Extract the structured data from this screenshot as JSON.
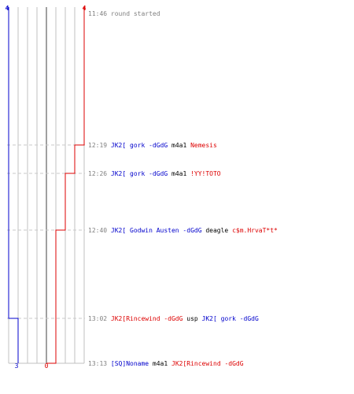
{
  "scores": {
    "blue_start": "4",
    "red_start": "4",
    "blue_end": "3",
    "red_end": "0"
  },
  "colors": {
    "blue": "#0000cc",
    "red": "#dd0000",
    "grid": "#c0c0c0",
    "center": "#808080",
    "time": "#808080",
    "weapon": "#000000",
    "dash": "#c8c8c8"
  },
  "events": [
    {
      "time": "11:46",
      "text": "round started",
      "kind": "start"
    },
    {
      "time": "12:19",
      "killer": "JK2[ gork -dGdG",
      "killer_team": "blue",
      "weapon": "m4a1",
      "victim": "Nemesis",
      "victim_team": "red",
      "blue_after": 4,
      "red_after": 3
    },
    {
      "time": "12:26",
      "killer": "JK2[ gork -dGdG",
      "killer_team": "blue",
      "weapon": "m4a1",
      "victim": "!YY!TOTO",
      "victim_team": "red",
      "blue_after": 4,
      "red_after": 2
    },
    {
      "time": "12:40",
      "killer": "JK2[ Godwin Austen -dGdG",
      "killer_team": "blue",
      "weapon": "deagle",
      "victim": "c$m.HrvaT*t*",
      "victim_team": "red",
      "blue_after": 4,
      "red_after": 1
    },
    {
      "time": "13:02",
      "killer": "JK2[Rincewind -dGdG",
      "killer_team": "red",
      "weapon": "usp",
      "victim": "JK2[ gork -dGdG",
      "victim_team": "blue",
      "blue_after": 3,
      "red_after": 1
    },
    {
      "time": "13:13",
      "killer": "[SQ]Noname",
      "killer_team": "blue",
      "weapon": "m4a1",
      "victim": "JK2[Rincewind -dGdG",
      "victim_team": "red",
      "blue_after": 3,
      "red_after": 0
    }
  ]
}
